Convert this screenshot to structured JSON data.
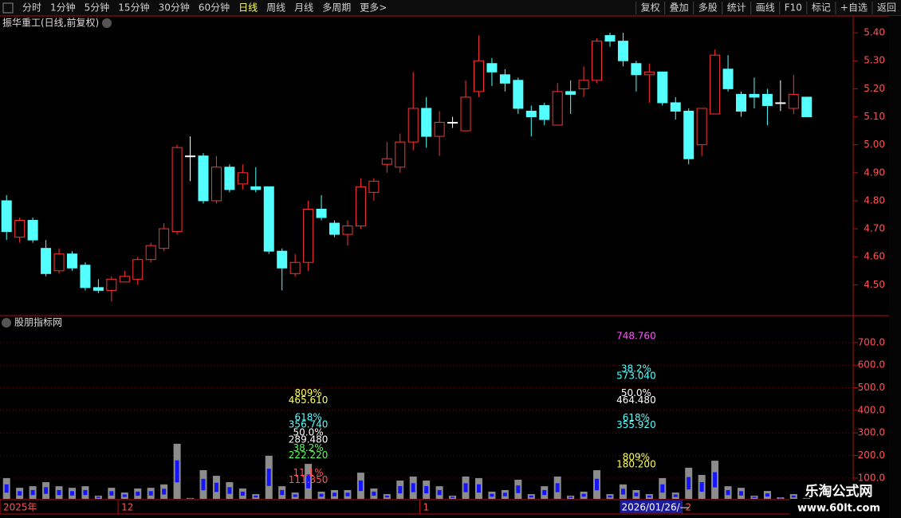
{
  "toolbar": {
    "periods": [
      "分时",
      "1分钟",
      "5分钟",
      "15分钟",
      "30分钟",
      "60分钟",
      "日线",
      "周线",
      "月线",
      "多周期",
      "更多>"
    ],
    "active": 6,
    "actions": [
      "复权",
      "叠加",
      "多股",
      "统计",
      "画线",
      "F10",
      "标记",
      "+自选",
      "返回"
    ]
  },
  "chart_data": [
    {
      "type": "candlestick",
      "title": "振华重工(日线,前复权)",
      "categories": [
        "2025年",
        null,
        null,
        null,
        null,
        null,
        null,
        null,
        null,
        "12",
        null,
        null,
        null,
        null,
        null,
        null,
        null,
        null,
        null,
        null,
        null,
        null,
        null,
        null,
        null,
        null,
        null,
        null,
        null,
        null,
        null,
        null,
        "1",
        null,
        null,
        null,
        null,
        null,
        null,
        null,
        null,
        null,
        null,
        null,
        null,
        null,
        null,
        null,
        null,
        null,
        null,
        null,
        "2",
        null,
        null,
        null,
        null,
        null,
        null,
        null,
        null,
        null
      ],
      "open": [
        4.8,
        4.67,
        4.73,
        4.63,
        4.55,
        4.61,
        4.57,
        4.49,
        4.48,
        4.51,
        4.52,
        4.59,
        4.63,
        4.69,
        4.96,
        4.96,
        4.8,
        4.92,
        4.86,
        4.85,
        4.85,
        4.62,
        4.54,
        4.58,
        4.77,
        4.72,
        4.68,
        4.71,
        4.83,
        4.93,
        4.92,
        5.01,
        5.13,
        5.03,
        5.08,
        5.05,
        5.19,
        5.29,
        5.25,
        5.23,
        5.12,
        5.14,
        5.07,
        5.19,
        5.2,
        5.23,
        5.39,
        5.37,
        5.29,
        5.25,
        5.26,
        5.15,
        5.12,
        5.0,
        5.11,
        5.27,
        5.18,
        5.18,
        5.18,
        5.15,
        5.13,
        5.17
      ],
      "close": [
        4.69,
        4.73,
        4.66,
        4.54,
        4.61,
        4.56,
        4.49,
        4.48,
        4.52,
        4.53,
        4.59,
        4.64,
        4.7,
        4.99,
        4.96,
        4.8,
        4.92,
        4.84,
        4.9,
        4.84,
        4.62,
        4.56,
        4.58,
        4.77,
        4.74,
        4.68,
        4.71,
        4.85,
        4.87,
        4.95,
        5.01,
        5.13,
        5.03,
        5.08,
        5.08,
        5.17,
        5.3,
        5.26,
        5.22,
        5.13,
        5.1,
        5.09,
        5.19,
        5.18,
        5.23,
        5.37,
        5.37,
        5.3,
        5.25,
        5.26,
        5.15,
        5.12,
        4.95,
        5.13,
        5.32,
        5.2,
        5.12,
        5.17,
        5.14,
        5.15,
        5.18,
        5.1
      ],
      "high": [
        4.82,
        4.74,
        4.74,
        4.66,
        4.63,
        4.62,
        4.58,
        4.52,
        4.53,
        4.55,
        4.6,
        4.65,
        4.72,
        5.0,
        5.03,
        4.97,
        4.96,
        4.93,
        4.93,
        4.92,
        4.85,
        4.63,
        4.61,
        4.8,
        4.82,
        4.73,
        4.73,
        4.88,
        4.88,
        5.01,
        5.04,
        5.26,
        5.17,
        5.12,
        5.1,
        5.23,
        5.39,
        5.31,
        5.27,
        5.24,
        5.14,
        5.15,
        5.22,
        5.23,
        5.28,
        5.38,
        5.4,
        5.4,
        5.3,
        5.29,
        5.26,
        5.17,
        5.13,
        5.13,
        5.34,
        5.32,
        5.19,
        5.24,
        5.2,
        5.23,
        5.25,
        5.17
      ],
      "low": [
        4.66,
        4.65,
        4.65,
        4.53,
        4.54,
        4.55,
        4.48,
        4.47,
        4.44,
        4.51,
        4.5,
        4.58,
        4.62,
        4.68,
        4.87,
        4.79,
        4.79,
        4.83,
        4.84,
        4.83,
        4.61,
        4.48,
        4.53,
        4.55,
        4.73,
        4.67,
        4.64,
        4.7,
        4.8,
        4.9,
        4.9,
        4.98,
        4.99,
        4.96,
        5.06,
        5.05,
        5.17,
        5.21,
        5.19,
        5.11,
        5.03,
        5.07,
        5.07,
        5.11,
        5.17,
        5.22,
        5.35,
        5.28,
        5.19,
        5.15,
        5.14,
        5.09,
        4.93,
        4.96,
        5.11,
        5.19,
        5.1,
        5.13,
        5.07,
        5.12,
        5.11,
        5.1
      ],
      "up_color": "#ff3232",
      "down_color": "#54ffff",
      "flat_color": "#ffffff",
      "ylim": [
        4.39,
        5.46
      ],
      "yticks": [
        {
          "value": 4.5,
          "label": "4.50"
        },
        {
          "value": 4.6,
          "label": "4.60"
        },
        {
          "value": 4.7,
          "label": "4.70"
        },
        {
          "value": 4.8,
          "label": "4.80"
        },
        {
          "value": 4.9,
          "label": "4.90"
        },
        {
          "value": 5.0,
          "label": "5.00"
        },
        {
          "value": 5.1,
          "label": "5.10"
        },
        {
          "value": 5.2,
          "label": "5.20"
        },
        {
          "value": 5.3,
          "label": "5.30"
        },
        {
          "value": 5.4,
          "label": "5.40"
        }
      ],
      "cursor_date": "2026/01/26/—",
      "cursor_index": 47
    },
    {
      "type": "bar",
      "title": "股朋指标网",
      "values": [
        100,
        57,
        64,
        82,
        64,
        57,
        64,
        22,
        57,
        36,
        54,
        57,
        72,
        252,
        12,
        135,
        110,
        82,
        54,
        29,
        199,
        64,
        36,
        163,
        40,
        47,
        47,
        124,
        54,
        29,
        89,
        107,
        89,
        64,
        22,
        107,
        100,
        40,
        47,
        93,
        29,
        64,
        107,
        22,
        40,
        135,
        29,
        72,
        47,
        29,
        100,
        36,
        146,
        114,
        177,
        64,
        57,
        22,
        43,
        15,
        29,
        12
      ],
      "color": "#8c8c8c",
      "inner_color": "#1414ff",
      "ylim": [
        8,
        816
      ],
      "yticks": [
        {
          "value": 100,
          "label": "100.0"
        },
        {
          "value": 200,
          "label": "200.0"
        },
        {
          "value": 300,
          "label": "300.0"
        },
        {
          "value": 400,
          "label": "400.0"
        },
        {
          "value": 500,
          "label": "500.0"
        },
        {
          "value": 600,
          "label": "600.0"
        },
        {
          "value": 700,
          "label": "700.0"
        }
      ],
      "grid": true,
      "annotations": [
        {
          "index": 23,
          "value": 465.61,
          "label": "465.610",
          "pct": "809%",
          "color": "#ffff54"
        },
        {
          "index": 23,
          "value": 356.74,
          "label": "356.740",
          "pct": "618%",
          "color": "#54ffff"
        },
        {
          "index": 23,
          "value": 289.48,
          "label": "289.480",
          "pct": "50.0%",
          "color": "#ffffff"
        },
        {
          "index": 23,
          "value": 222.22,
          "label": "222.220",
          "pct": "38.2%",
          "color": "#54ff54"
        },
        {
          "index": 23,
          "value": 111.35,
          "label": "111.350",
          "pct": "11.1%",
          "color": "#ff5454"
        },
        {
          "index": 48,
          "value": 748.76,
          "label": "748.760",
          "color": "#ff54ff"
        },
        {
          "index": 48,
          "value": 573.04,
          "label": "573.040",
          "pct": "38.2%",
          "color": "#54ffff"
        },
        {
          "index": 48,
          "value": 464.48,
          "label": "464.480",
          "pct": "50.0%",
          "color": "#ffffff"
        },
        {
          "index": 48,
          "value": 355.92,
          "label": "355.920",
          "pct": "618%",
          "color": "#54ffff"
        },
        {
          "index": 48,
          "value": 180.2,
          "label": "180.200",
          "pct": "809%",
          "color": "#ffff54"
        }
      ]
    }
  ],
  "watermark": {
    "name": "乐淘公式网",
    "url": "www.60lt.com"
  }
}
